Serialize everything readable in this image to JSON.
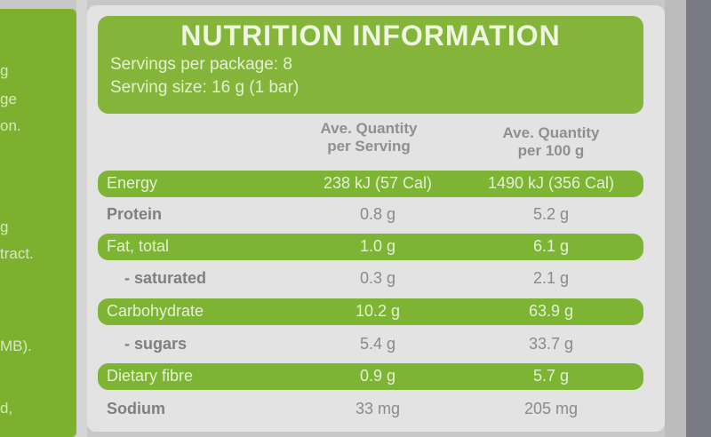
{
  "side_text_fragments": [
    "g",
    "ge",
    "on.",
    "g",
    "tract.",
    "MB).",
    "d,"
  ],
  "label": {
    "title": "NUTRITION INFORMATION",
    "servings_per_package": "Servings per package: 8",
    "serving_size": "Serving size: 16 g (1 bar)",
    "columns": {
      "per_serving": [
        "Ave. Quantity",
        "per Serving"
      ],
      "per_100g": [
        "Ave. Quantity",
        "per 100 g"
      ]
    },
    "rows": [
      {
        "name": "Energy",
        "serving": "238 kJ (57 Cal)",
        "per100": "1490 kJ (356 Cal)"
      },
      {
        "name": "Protein",
        "serving": "0.8 g",
        "per100": "5.2 g"
      },
      {
        "name": "Fat, total",
        "serving": "1.0 g",
        "per100": "6.1 g"
      },
      {
        "name": "- saturated",
        "serving": "0.3 g",
        "per100": "2.1 g"
      },
      {
        "name": "Carbohydrate",
        "serving": "10.2 g",
        "per100": "63.9 g"
      },
      {
        "name": "- sugars",
        "serving": "5.4 g",
        "per100": "33.7 g"
      },
      {
        "name": "Dietary fibre",
        "serving": "0.9 g",
        "per100": "5.7 g"
      },
      {
        "name": "Sodium",
        "serving": "33 mg",
        "per100": "205 mg"
      }
    ]
  },
  "colors": {
    "brand_green": "#7db434",
    "label_background": "#e4e3e4",
    "text_grey": "#8a8a8a"
  }
}
